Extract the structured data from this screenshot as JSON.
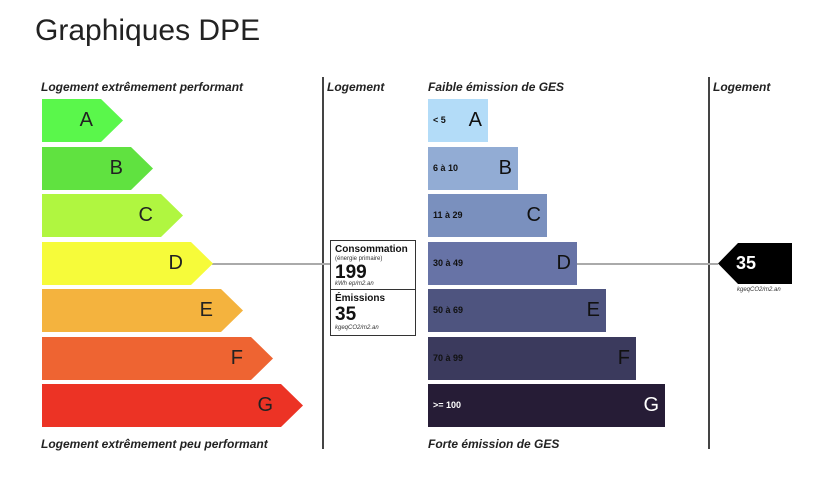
{
  "page": {
    "title": "Graphiques DPE"
  },
  "dpe": {
    "top_label": "Logement extrêmement performant",
    "bottom_label": "Logement extrêmement peu performant",
    "column_label": "Logement",
    "classes": [
      {
        "letter": "A",
        "color": "#5af74b"
      },
      {
        "letter": "B",
        "color": "#60e240"
      },
      {
        "letter": "C",
        "color": "#b0f640"
      },
      {
        "letter": "D",
        "color": "#f6fb3a"
      },
      {
        "letter": "E",
        "color": "#f4b33e"
      },
      {
        "letter": "F",
        "color": "#ee6432"
      },
      {
        "letter": "G",
        "color": "#ec3325"
      }
    ],
    "current_class": "D"
  },
  "ges": {
    "top_label": "Faible émission de GES",
    "bottom_label": "Forte émission de GES",
    "column_label": "Logement",
    "classes": [
      {
        "letter": "A",
        "range": "< 5",
        "color": "#b3dcf8",
        "text_color": "#111111"
      },
      {
        "letter": "B",
        "range": "6 à 10",
        "color": "#92acd4",
        "text_color": "#111111"
      },
      {
        "letter": "C",
        "range": "11 à 29",
        "color": "#7a90be",
        "text_color": "#111111"
      },
      {
        "letter": "D",
        "range": "30 à 49",
        "color": "#6773a6",
        "text_color": "#111111"
      },
      {
        "letter": "E",
        "range": "50 à 69",
        "color": "#4e547f",
        "text_color": "#111111"
      },
      {
        "letter": "F",
        "range": "70 à 99",
        "color": "#3b3a5d",
        "text_color": "#111111"
      },
      {
        "letter": "G",
        "range": ">= 100",
        "color": "#261c36",
        "text_color": "#ffffff"
      }
    ],
    "current_class": "D",
    "marker_value": "35",
    "marker_unit": "kgeqCO2/m2.an"
  },
  "info": {
    "consumption_title": "Consommation",
    "consumption_subtitle": "(énergie primaire)",
    "consumption_value": "199",
    "consumption_unit": "kWh ep/m2.an",
    "emissions_title": "Émissions",
    "emissions_value": "35",
    "emissions_unit": "kgeqCO2/m2.an"
  },
  "chart_data": [
    {
      "type": "bar",
      "categories": [
        "A",
        "B",
        "C",
        "D",
        "E",
        "F",
        "G"
      ],
      "top_label": "Logement extrêmement performant",
      "bottom_label": "Logement extrêmement peu performant",
      "highlighted": "D",
      "value": 199,
      "value_unit": "kWh ep/m2.an"
    },
    {
      "type": "bar",
      "categories": [
        "A",
        "B",
        "C",
        "D",
        "E",
        "F",
        "G"
      ],
      "ranges": [
        "< 5",
        "6 à 10",
        "11 à 29",
        "30 à 49",
        "50 à 69",
        "70 à 99",
        ">= 100"
      ],
      "top_label": "Faible émission de GES",
      "bottom_label": "Forte émission de GES",
      "highlighted": "D",
      "value": 35,
      "value_unit": "kgeqCO2/m2.an"
    }
  ]
}
